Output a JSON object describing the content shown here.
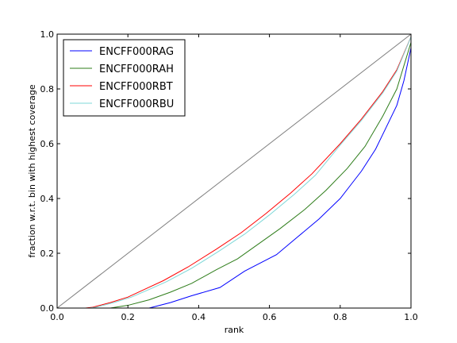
{
  "chart_data": {
    "type": "line",
    "title": "",
    "xlabel": "rank",
    "ylabel": "fraction w.r.t. bin with highest coverage",
    "xlim": [
      0.0,
      1.0
    ],
    "ylim": [
      0.0,
      1.0
    ],
    "xticks": [
      "0.0",
      "0.2",
      "0.4",
      "0.6",
      "0.8",
      "1.0"
    ],
    "yticks": [
      "0.0",
      "0.2",
      "0.4",
      "0.6",
      "0.8",
      "1.0"
    ],
    "grid": false,
    "legend_position": "top-left",
    "series": [
      {
        "name": "ENCFF000RAG",
        "color": "#0000ff",
        "x": [
          0.26,
          0.32,
          0.38,
          0.46,
          0.53,
          0.62,
          0.68,
          0.74,
          0.8,
          0.83,
          0.86,
          0.9,
          0.93,
          0.96,
          0.98,
          1.0
        ],
        "y": [
          0.0,
          0.02,
          0.045,
          0.075,
          0.135,
          0.195,
          0.26,
          0.325,
          0.4,
          0.45,
          0.5,
          0.58,
          0.66,
          0.74,
          0.83,
          0.95
        ]
      },
      {
        "name": "ENCFF000RAH",
        "color": "#2e7d1a",
        "x": [
          0.15,
          0.2,
          0.26,
          0.32,
          0.38,
          0.45,
          0.51,
          0.57,
          0.63,
          0.7,
          0.76,
          0.82,
          0.87,
          0.92,
          0.96,
          1.0
        ],
        "y": [
          0.0,
          0.01,
          0.03,
          0.058,
          0.09,
          0.14,
          0.18,
          0.235,
          0.29,
          0.36,
          0.43,
          0.51,
          0.59,
          0.7,
          0.8,
          0.97
        ]
      },
      {
        "name": "ENCFF000RBT",
        "color": "#ff0000",
        "x": [
          0.08,
          0.1,
          0.15,
          0.2,
          0.25,
          0.3,
          0.37,
          0.45,
          0.52,
          0.59,
          0.66,
          0.72,
          0.8,
          0.86,
          0.92,
          0.96,
          1.0
        ],
        "y": [
          0.0,
          0.003,
          0.02,
          0.04,
          0.07,
          0.1,
          0.15,
          0.215,
          0.275,
          0.345,
          0.42,
          0.49,
          0.6,
          0.69,
          0.79,
          0.87,
          0.99
        ]
      },
      {
        "name": "ENCFF000RBU",
        "color": "#7fd8d8",
        "x": [
          0.09,
          0.11,
          0.16,
          0.21,
          0.26,
          0.31,
          0.38,
          0.46,
          0.53,
          0.6,
          0.67,
          0.73,
          0.8,
          0.86,
          0.92,
          0.96,
          1.0
        ],
        "y": [
          0.0,
          0.003,
          0.02,
          0.04,
          0.068,
          0.097,
          0.145,
          0.21,
          0.27,
          0.34,
          0.415,
          0.485,
          0.595,
          0.685,
          0.785,
          0.865,
          0.99
        ]
      },
      {
        "name": "",
        "color": "#7f7f7f",
        "x": [
          0.0,
          1.0
        ],
        "y": [
          0.0,
          1.0
        ],
        "diagonal_reference": true
      }
    ]
  }
}
